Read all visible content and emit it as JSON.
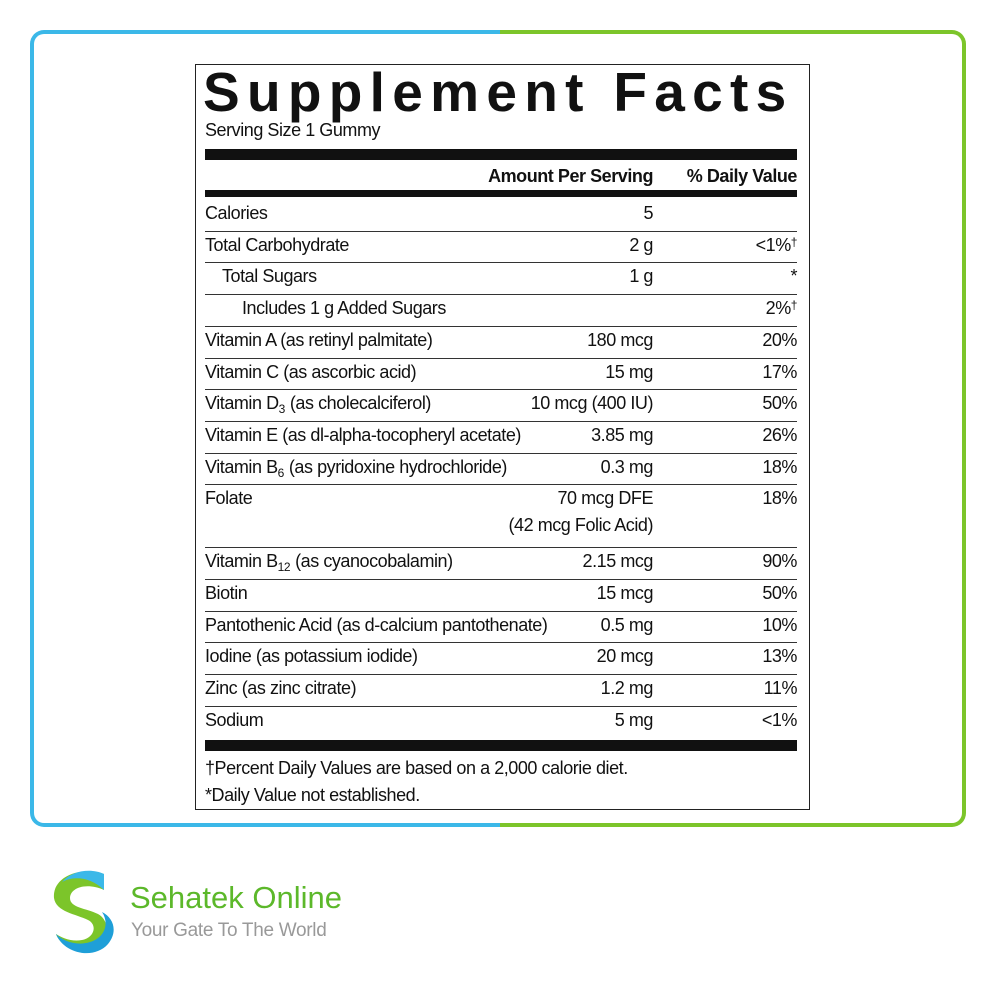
{
  "label": {
    "title": "Supplement Facts",
    "serving_size": "Serving Size 1 Gummy",
    "columns": [
      "Amount Per Serving",
      "% Daily Value"
    ],
    "rows": [
      {
        "name": "Calories",
        "amount": "5"
      },
      {
        "name": "Total Carbohydrate",
        "amount": "2 g",
        "dv": "<1%",
        "note": "†"
      },
      {
        "name": "Total Sugars",
        "amount": "1 g",
        "dv": "*",
        "level": 1
      },
      {
        "name": "Includes 1 g Added Sugars",
        "dv": "2%",
        "note": "†",
        "level": 2
      },
      {
        "name": "Vitamin A (as retinyl palmitate)",
        "amount": "180 mcg",
        "dv": "20%"
      },
      {
        "name": "Vitamin C (as ascorbic acid)",
        "amount": "15 mg",
        "dv": "17%"
      },
      {
        "name": "Vitamin D",
        "sub": "3",
        "desc": "(as cholecalciferol)",
        "amount": "10 mcg (400 IU)",
        "dv": "50%"
      },
      {
        "name": "Vitamin E (as dl-alpha-tocopheryl acetate)",
        "amount": "3.85 mg",
        "dv": "26%"
      },
      {
        "name": "Vitamin B",
        "sub": "6",
        "desc": "(as pyridoxine hydrochloride)",
        "amount": "0.3 mg",
        "dv": "18%"
      },
      {
        "name": "Folate",
        "amount": "70 mcg DFE",
        "amount_detail": "(42 mcg Folic Acid)",
        "dv": "18%"
      },
      {
        "name": "Vitamin B",
        "sub": "12",
        "desc": "(as cyanocobalamin)",
        "amount": "2.15 mcg",
        "dv": "90%"
      },
      {
        "name": "Biotin",
        "amount": "15 mcg",
        "dv": "50%"
      },
      {
        "name": "Pantothenic Acid (as d-calcium pantothenate)",
        "amount": "0.5 mg",
        "dv": "10%"
      },
      {
        "name": "Iodine (as potassium iodide)",
        "amount": "20 mcg",
        "dv": "13%"
      },
      {
        "name": "Zinc (as zinc citrate)",
        "amount": "1.2 mg",
        "dv": "11%"
      },
      {
        "name": "Sodium",
        "amount": "5 mg",
        "dv": "<1%"
      }
    ],
    "footnotes": [
      "†Percent Daily Values are based on a 2,000 calorie diet.",
      "*Daily Value not established."
    ]
  },
  "brand": {
    "name": "Sehatek Online",
    "tagline": "Your Gate To The World"
  }
}
